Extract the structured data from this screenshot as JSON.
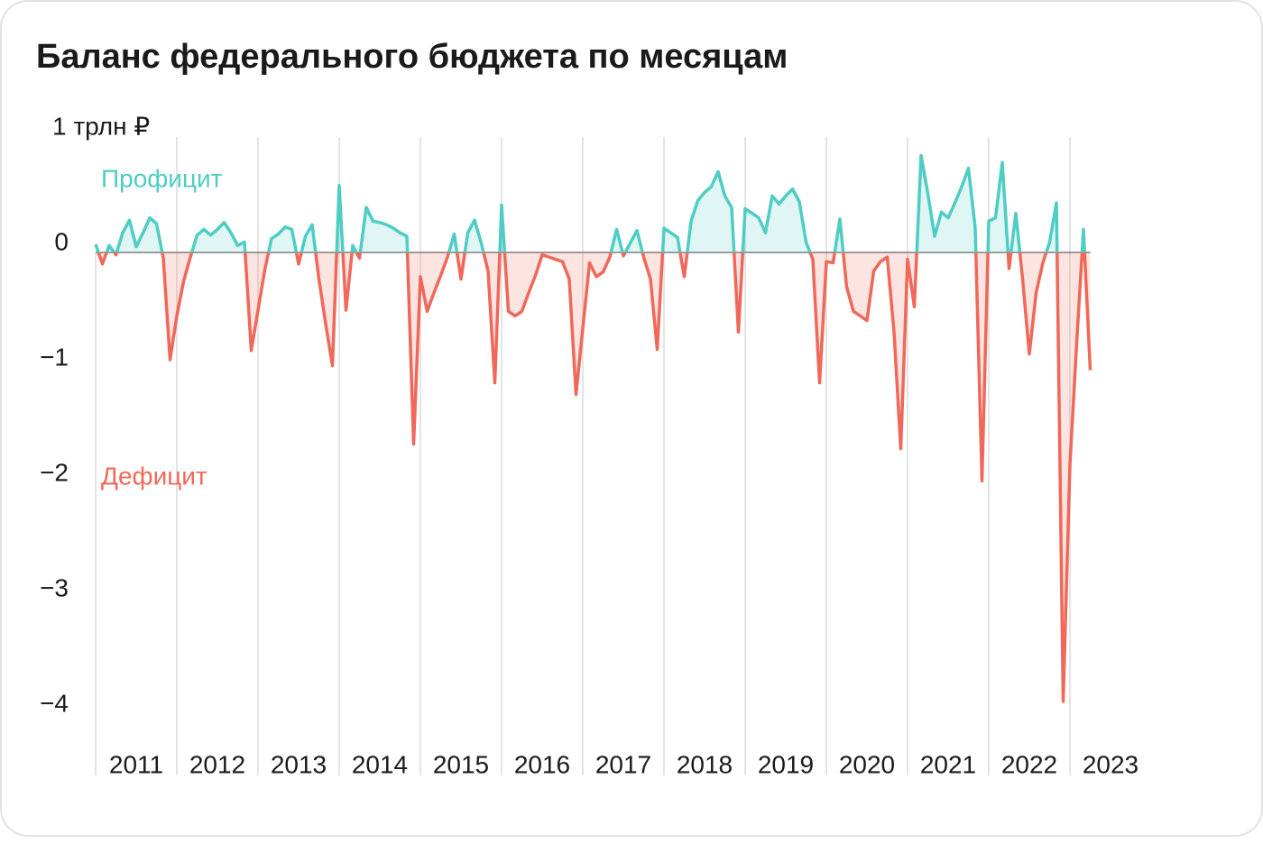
{
  "chart_data": {
    "type": "line",
    "title": "Баланс федерального бюджета по месяцам",
    "annotations": {
      "positive": "Профицит",
      "negative": "Дефицит"
    },
    "positive_color": "#4ecdc4",
    "negative_color": "#f0685a",
    "categories": [
      "2011",
      null,
      null,
      null,
      null,
      null,
      null,
      null,
      null,
      null,
      null,
      null,
      "2012",
      null,
      null,
      null,
      null,
      null,
      null,
      null,
      null,
      null,
      null,
      null,
      "2013",
      null,
      null,
      null,
      null,
      null,
      null,
      null,
      null,
      null,
      null,
      null,
      "2014",
      null,
      null,
      null,
      null,
      null,
      null,
      null,
      null,
      null,
      null,
      null,
      "2015",
      null,
      null,
      null,
      null,
      null,
      null,
      null,
      null,
      null,
      null,
      null,
      "2016",
      null,
      null,
      null,
      null,
      null,
      null,
      null,
      null,
      null,
      null,
      null,
      "2017",
      null,
      null,
      null,
      null,
      null,
      null,
      null,
      null,
      null,
      null,
      null,
      "2018",
      null,
      null,
      null,
      null,
      null,
      null,
      null,
      null,
      null,
      null,
      null,
      "2019",
      null,
      null,
      null,
      null,
      null,
      null,
      null,
      null,
      null,
      null,
      null,
      "2020",
      null,
      null,
      null,
      null,
      null,
      null,
      null,
      null,
      null,
      null,
      null,
      "2021",
      null,
      null,
      null,
      null,
      null,
      null,
      null,
      null,
      null,
      null,
      null,
      "2022",
      null,
      null,
      null,
      null,
      null,
      null,
      null,
      null,
      null,
      null,
      null,
      "2023",
      null,
      null,
      null
    ],
    "values": [
      0.07,
      -0.1,
      0.06,
      -0.02,
      0.17,
      0.28,
      0.05,
      0.17,
      0.3,
      0.25,
      -0.05,
      -0.93,
      -0.55,
      -0.25,
      -0.04,
      0.15,
      0.2,
      0.15,
      0.2,
      0.26,
      0.17,
      0.06,
      0.09,
      -0.85,
      -0.5,
      -0.15,
      0.12,
      0.16,
      0.22,
      0.2,
      -0.1,
      0.14,
      0.24,
      -0.23,
      -0.62,
      -0.98,
      0.58,
      -0.5,
      0.06,
      -0.05,
      0.39,
      0.27,
      0.26,
      0.24,
      0.21,
      0.17,
      0.14,
      -1.66,
      -0.21,
      -0.51,
      -0.35,
      -0.2,
      -0.04,
      0.16,
      -0.23,
      0.17,
      0.28,
      0.08,
      -0.16,
      -1.13,
      0.41,
      -0.51,
      -0.55,
      -0.51,
      -0.35,
      -0.2,
      -0.02,
      -0.04,
      -0.06,
      -0.08,
      -0.23,
      -1.23,
      -0.66,
      -0.09,
      -0.21,
      -0.17,
      -0.04,
      0.2,
      -0.03,
      0.08,
      0.19,
      -0.04,
      -0.23,
      -0.84,
      0.21,
      0.17,
      0.13,
      -0.21,
      0.27,
      0.45,
      0.52,
      0.57,
      0.7,
      0.49,
      0.39,
      -0.69,
      0.38,
      0.34,
      0.3,
      0.17,
      0.49,
      0.42,
      0.49,
      0.55,
      0.44,
      0.09,
      -0.06,
      -1.13,
      -0.08,
      -0.09,
      0.29,
      -0.3,
      -0.51,
      -0.55,
      -0.59,
      -0.16,
      -0.08,
      -0.04,
      -0.69,
      -1.7,
      -0.06,
      -0.47,
      0.84,
      0.51,
      0.14,
      0.35,
      0.3,
      0.43,
      0.57,
      0.73,
      0.21,
      -1.98,
      0.27,
      0.3,
      0.78,
      -0.14,
      0.34,
      -0.23,
      -0.88,
      -0.35,
      -0.09,
      0.09,
      0.43,
      -3.89,
      -1.84,
      -0.78,
      0.2,
      -1.02
    ],
    "ylim": [
      -4,
      1
    ],
    "yticks": [
      {
        "value": 1,
        "label": "1 трлн ₽"
      },
      0,
      {
        "value": -1,
        "label": "−1"
      },
      {
        "value": -2,
        "label": "−2"
      },
      {
        "value": -3,
        "label": "−3"
      },
      {
        "value": -4,
        "label": "−4"
      }
    ]
  }
}
